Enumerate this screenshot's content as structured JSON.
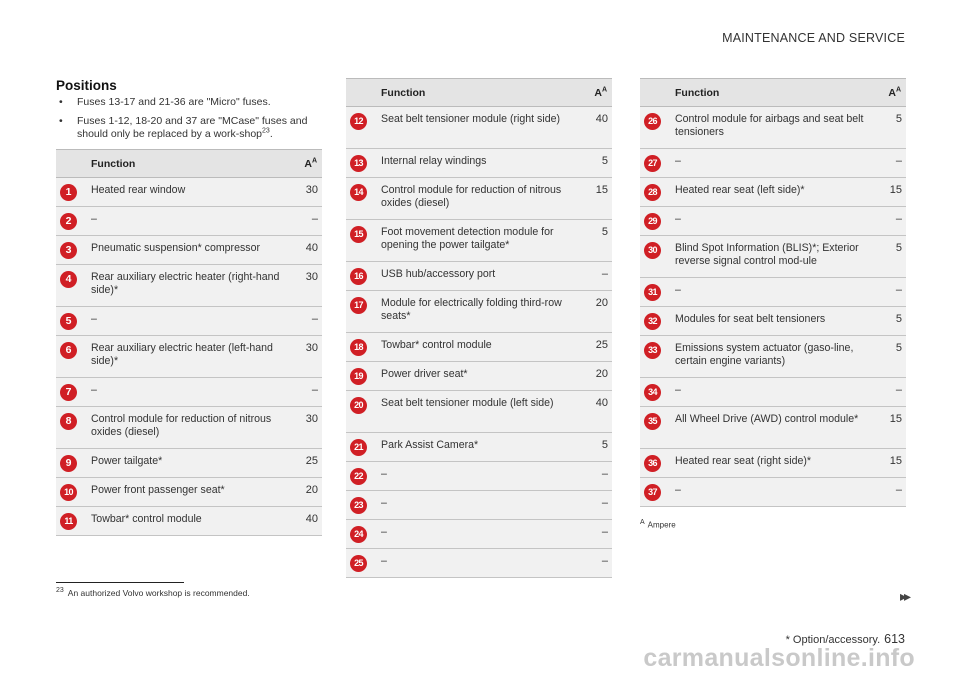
{
  "header": {
    "section_title": "MAINTENANCE AND SERVICE"
  },
  "positions": {
    "title": "Positions",
    "bullets": [
      {
        "text": "Fuses 13-17 and 21-36 are \"Micro\" fuses.",
        "sup": ""
      },
      {
        "text": "Fuses 1-12, 18-20 and 37 are \"MCase\" fuses and should only be replaced by a work-shop",
        "sup": "23",
        "tail": "."
      }
    ]
  },
  "table_header": {
    "function": "Function",
    "amp": "A",
    "amp_sup": "A"
  },
  "columns": [
    [
      {
        "num": "1",
        "func": "Heated rear window",
        "amp": "30"
      },
      {
        "num": "2",
        "func": "–",
        "amp": "–"
      },
      {
        "num": "3",
        "func": "Pneumatic suspension* compressor",
        "amp": "40"
      },
      {
        "num": "4",
        "func": "Rear auxiliary electric heater (right-hand side)*",
        "amp": "30"
      },
      {
        "num": "5",
        "func": "–",
        "amp": "–"
      },
      {
        "num": "6",
        "func": "Rear auxiliary electric heater (left-hand side)*",
        "amp": "30"
      },
      {
        "num": "7",
        "func": "–",
        "amp": "–"
      },
      {
        "num": "8",
        "func": "Control module for reduction of nitrous oxides (diesel)",
        "amp": "30"
      },
      {
        "num": "9",
        "func": "Power tailgate*",
        "amp": "25"
      },
      {
        "num": "10",
        "func": "Power front passenger seat*",
        "amp": "20"
      },
      {
        "num": "11",
        "func": "Towbar* control module",
        "amp": "40"
      }
    ],
    [
      {
        "num": "12",
        "func": "Seat belt tensioner module (right side)",
        "amp": "40"
      },
      {
        "num": "13",
        "func": "Internal relay windings",
        "amp": "5"
      },
      {
        "num": "14",
        "func": "Control module for reduction of nitrous oxides (diesel)",
        "amp": "15"
      },
      {
        "num": "15",
        "func": "Foot movement detection module for opening the power tailgate*",
        "amp": "5"
      },
      {
        "num": "16",
        "func": "USB hub/accessory port",
        "amp": "–"
      },
      {
        "num": "17",
        "func": "Module for electrically folding third-row seats*",
        "amp": "20"
      },
      {
        "num": "18",
        "func": "Towbar* control module",
        "amp": "25"
      },
      {
        "num": "19",
        "func": "Power driver seat*",
        "amp": "20"
      },
      {
        "num": "20",
        "func": "Seat belt tensioner module (left side)",
        "amp": "40"
      },
      {
        "num": "21",
        "func": "Park Assist Camera*",
        "amp": "5"
      },
      {
        "num": "22",
        "func": "–",
        "amp": "–"
      },
      {
        "num": "23",
        "func": "–",
        "amp": "–"
      },
      {
        "num": "24",
        "func": "–",
        "amp": "–"
      },
      {
        "num": "25",
        "func": "–",
        "amp": "–"
      }
    ],
    [
      {
        "num": "26",
        "func": "Control module for airbags and seat belt tensioners",
        "amp": "5"
      },
      {
        "num": "27",
        "func": "–",
        "amp": "–"
      },
      {
        "num": "28",
        "func": "Heated rear seat (left side)*",
        "amp": "15"
      },
      {
        "num": "29",
        "func": "–",
        "amp": "–"
      },
      {
        "num": "30",
        "func": "Blind Spot Information (BLIS)*; Exterior reverse signal control mod-ule",
        "amp": "5"
      },
      {
        "num": "31",
        "func": "–",
        "amp": "–"
      },
      {
        "num": "32",
        "func": "Modules for seat belt tensioners",
        "amp": "5"
      },
      {
        "num": "33",
        "func": "Emissions system actuator (gaso-line, certain engine variants)",
        "amp": "5"
      },
      {
        "num": "34",
        "func": "–",
        "amp": "–"
      },
      {
        "num": "35",
        "func": "All Wheel Drive (AWD) control module*",
        "amp": "15"
      },
      {
        "num": "36",
        "func": "Heated rear seat (right side)*",
        "amp": "15"
      },
      {
        "num": "37",
        "func": "–",
        "amp": "–"
      }
    ]
  ],
  "table_footnote": {
    "marker": "A",
    "text": "Ampere"
  },
  "page_footnote": {
    "marker": "23",
    "text": "An authorized Volvo workshop is recommended."
  },
  "nav": {
    "next_arrows": "▸▸"
  },
  "footer": {
    "note": "* Option/accessory.",
    "page_number": "613"
  },
  "watermark": {
    "text": "carmanualsonline.info"
  },
  "colors": {
    "badge": "#d01f25",
    "row_bg": "#f1f1f1",
    "header_bg": "#e4e4e4"
  }
}
